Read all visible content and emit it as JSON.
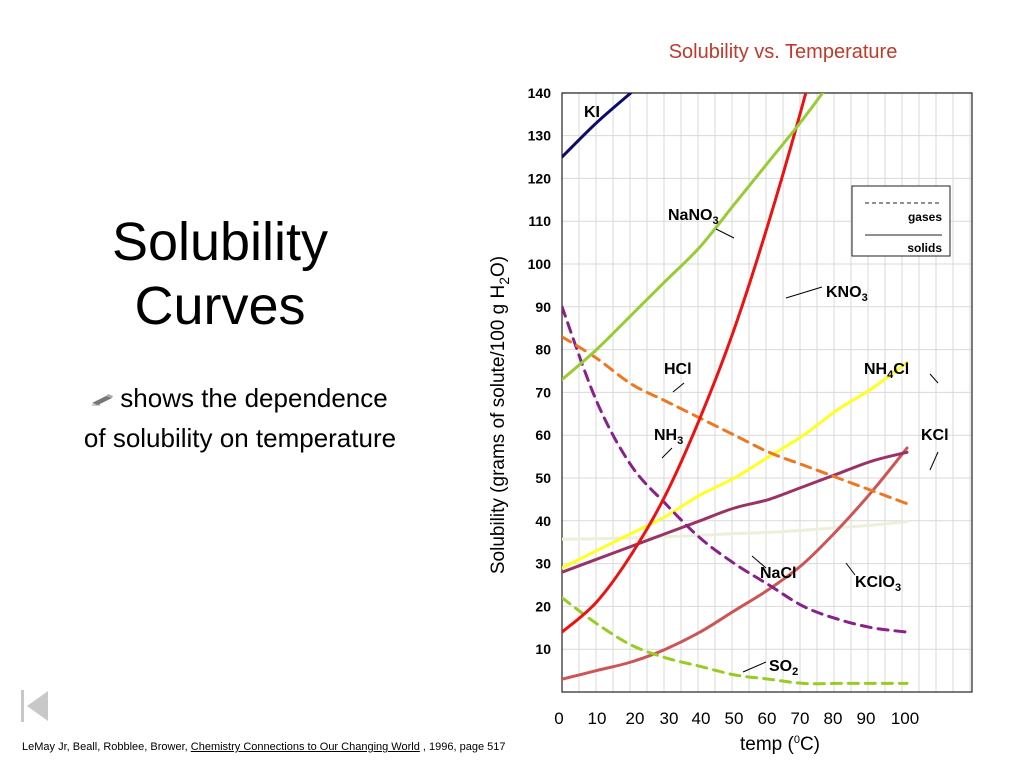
{
  "slide": {
    "title_line1": "Solubility",
    "title_line2": "Curves",
    "bullet_line1": "shows the dependence",
    "bullet_line2": "of solubility on temperature",
    "bullet_icon": "pen-icon",
    "nav_icon": "first-slide-icon"
  },
  "citation": {
    "prefix": "LeMay Jr, Beall, Robblee, Brower,",
    "book": "Chemistry Connections to Our Changing World",
    "suffix": " , 1996, page 517"
  },
  "chart_data": {
    "type": "line",
    "title": "Solubility vs. Temperature",
    "xlabel_prefix": "temp (",
    "xlabel_sup": "0",
    "xlabel_suffix": "C)",
    "ylabel_prefix": "Solubility (grams of solute/100 g H",
    "ylabel_sub": "2",
    "ylabel_suffix": "O)",
    "xlim": [
      0,
      100
    ],
    "ylim": [
      0,
      140
    ],
    "x_ticks": [
      0,
      10,
      20,
      30,
      40,
      50,
      60,
      70,
      80,
      90,
      100
    ],
    "y_ticks": [
      10,
      20,
      30,
      40,
      50,
      60,
      70,
      80,
      90,
      100,
      110,
      120,
      130,
      140
    ],
    "grid": true,
    "legend": {
      "position": "right",
      "entries": [
        {
          "label": "gases",
          "style": "dashed"
        },
        {
          "label": "solids",
          "style": "solid"
        }
      ]
    },
    "series": [
      {
        "name": "KI",
        "main": "KI",
        "sub": "",
        "tail": "",
        "color": "#0b0b6b",
        "style": "solid",
        "x": [
          0,
          10,
          20
        ],
        "y": [
          125,
          133,
          140
        ]
      },
      {
        "name": "NaNO3",
        "main": "NaNO",
        "sub": "3",
        "tail": "",
        "color": "#99cc33",
        "style": "solid",
        "x": [
          0,
          10,
          20,
          30,
          40,
          50,
          60,
          70,
          80,
          90
        ],
        "y": [
          73,
          80,
          88,
          96,
          104,
          114,
          124,
          134,
          145,
          157
        ]
      },
      {
        "name": "KNO3",
        "main": "KNO",
        "sub": "3",
        "tail": "",
        "color": "#ee1111",
        "style": "solid",
        "x": [
          0,
          10,
          20,
          30,
          40,
          50,
          60,
          70,
          80
        ],
        "y": [
          14,
          21,
          32,
          46,
          64,
          85,
          110,
          138,
          169
        ]
      },
      {
        "name": "NH4Cl",
        "main": "NH",
        "sub": "4",
        "tail": "Cl",
        "color": "#ffff22",
        "style": "solid",
        "x": [
          0,
          10,
          20,
          30,
          40,
          50,
          60,
          70,
          80,
          90,
          100
        ],
        "y": [
          29,
          33,
          37,
          41,
          46,
          50,
          55,
          60,
          66,
          71,
          77
        ]
      },
      {
        "name": "KCl",
        "main": "KCl",
        "sub": "",
        "tail": "",
        "color": "#993366",
        "style": "solid",
        "x": [
          0,
          10,
          20,
          30,
          40,
          50,
          60,
          70,
          80,
          90,
          100
        ],
        "y": [
          28,
          31,
          34,
          37,
          40,
          43,
          45,
          48,
          51,
          54,
          56
        ]
      },
      {
        "name": "NaCl",
        "main": "NaCl",
        "sub": "",
        "tail": "",
        "color": "#eeeedd",
        "style": "solid",
        "x": [
          0,
          10,
          20,
          30,
          40,
          50,
          60,
          70,
          80,
          90,
          100
        ],
        "y": [
          35.7,
          35.8,
          36,
          36.3,
          36.6,
          37,
          37.3,
          37.8,
          38.4,
          39,
          39.8
        ]
      },
      {
        "name": "KClO3",
        "main": "KClO",
        "sub": "3",
        "tail": "",
        "color": "#cc5555",
        "style": "solid",
        "x": [
          0,
          10,
          20,
          30,
          40,
          50,
          60,
          70,
          80,
          90,
          100
        ],
        "y": [
          3,
          5,
          7,
          10,
          14,
          19,
          24,
          30,
          38,
          47,
          57
        ]
      },
      {
        "name": "HCl",
        "main": "HCl",
        "sub": "",
        "tail": "",
        "color": "#ee7722",
        "style": "dashed",
        "x": [
          0,
          10,
          20,
          30,
          40,
          50,
          60,
          70,
          80,
          90,
          100
        ],
        "y": [
          83,
          78,
          72,
          68,
          64,
          60,
          56,
          53,
          50,
          47,
          44
        ]
      },
      {
        "name": "NH3",
        "main": "NH",
        "sub": "3",
        "tail": "",
        "color": "#882288",
        "style": "dashed",
        "x": [
          0,
          10,
          20,
          30,
          40,
          50,
          60,
          70,
          80,
          90,
          100
        ],
        "y": [
          90,
          68,
          53,
          44,
          36,
          30,
          25,
          20,
          17,
          15,
          14
        ]
      },
      {
        "name": "SO2",
        "main": "SO",
        "sub": "2",
        "tail": "",
        "color": "#99cc22",
        "style": "dashed",
        "x": [
          0,
          10,
          20,
          30,
          40,
          50,
          60,
          70,
          80,
          90,
          100
        ],
        "y": [
          22,
          16,
          11,
          8,
          6,
          4,
          3,
          2,
          2,
          2,
          2
        ]
      }
    ]
  }
}
